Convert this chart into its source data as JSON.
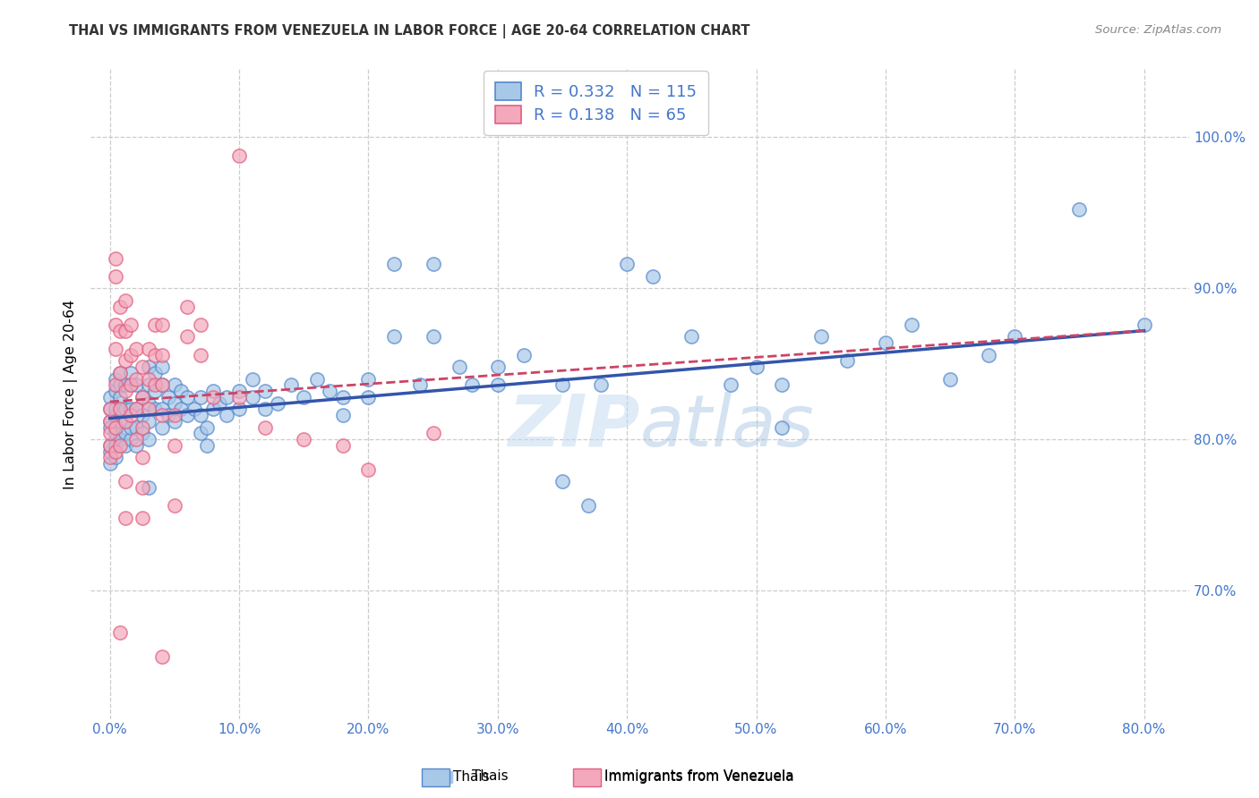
{
  "title": "THAI VS IMMIGRANTS FROM VENEZUELA IN LABOR FORCE | AGE 20-64 CORRELATION CHART",
  "source_text": "Source: ZipAtlas.com",
  "x_tick_vals": [
    0.0,
    0.1,
    0.2,
    0.3,
    0.4,
    0.5,
    0.6,
    0.7,
    0.8
  ],
  "x_tick_labels": [
    "0.0%",
    "10.0%",
    "20.0%",
    "30.0%",
    "40.0%",
    "50.0%",
    "60.0%",
    "70.0%",
    "80.0%"
  ],
  "y_tick_vals": [
    0.7,
    0.8,
    0.9,
    1.0
  ],
  "y_tick_labels": [
    "70.0%",
    "80.0%",
    "90.0%",
    "100.0%"
  ],
  "xlim": [
    -0.015,
    0.835
  ],
  "ylim": [
    0.615,
    1.045
  ],
  "ylabel": "In Labor Force | Age 20-64",
  "watermark": "ZIPatlas",
  "legend_labels": [
    "Thais",
    "Immigrants from Venezuela"
  ],
  "R_blue": 0.332,
  "N_blue": 115,
  "R_pink": 0.138,
  "N_pink": 65,
  "blue_color": "#A8C8E8",
  "pink_color": "#F4A8BC",
  "blue_edge_color": "#5588CC",
  "pink_edge_color": "#E06080",
  "blue_line_color": "#3355AA",
  "pink_line_color": "#CC4466",
  "grid_color": "#CCCCCC",
  "title_color": "#333333",
  "axis_tick_color": "#4477CC",
  "blue_scatter": [
    [
      0.0,
      0.784
    ],
    [
      0.0,
      0.792
    ],
    [
      0.0,
      0.828
    ],
    [
      0.0,
      0.812
    ],
    [
      0.0,
      0.796
    ],
    [
      0.0,
      0.808
    ],
    [
      0.0,
      0.82
    ],
    [
      0.004,
      0.8
    ],
    [
      0.004,
      0.816
    ],
    [
      0.004,
      0.788
    ],
    [
      0.004,
      0.796
    ],
    [
      0.004,
      0.804
    ],
    [
      0.004,
      0.82
    ],
    [
      0.004,
      0.832
    ],
    [
      0.004,
      0.84
    ],
    [
      0.008,
      0.8
    ],
    [
      0.008,
      0.812
    ],
    [
      0.008,
      0.82
    ],
    [
      0.008,
      0.828
    ],
    [
      0.008,
      0.836
    ],
    [
      0.008,
      0.844
    ],
    [
      0.012,
      0.796
    ],
    [
      0.012,
      0.804
    ],
    [
      0.012,
      0.812
    ],
    [
      0.012,
      0.82
    ],
    [
      0.012,
      0.836
    ],
    [
      0.016,
      0.8
    ],
    [
      0.016,
      0.808
    ],
    [
      0.016,
      0.82
    ],
    [
      0.016,
      0.836
    ],
    [
      0.016,
      0.844
    ],
    [
      0.02,
      0.796
    ],
    [
      0.02,
      0.808
    ],
    [
      0.02,
      0.82
    ],
    [
      0.02,
      0.836
    ],
    [
      0.025,
      0.804
    ],
    [
      0.025,
      0.816
    ],
    [
      0.025,
      0.828
    ],
    [
      0.03,
      0.768
    ],
    [
      0.03,
      0.8
    ],
    [
      0.03,
      0.812
    ],
    [
      0.03,
      0.824
    ],
    [
      0.03,
      0.836
    ],
    [
      0.03,
      0.848
    ],
    [
      0.035,
      0.82
    ],
    [
      0.035,
      0.832
    ],
    [
      0.035,
      0.844
    ],
    [
      0.04,
      0.808
    ],
    [
      0.04,
      0.82
    ],
    [
      0.04,
      0.836
    ],
    [
      0.04,
      0.848
    ],
    [
      0.045,
      0.816
    ],
    [
      0.045,
      0.828
    ],
    [
      0.05,
      0.812
    ],
    [
      0.05,
      0.824
    ],
    [
      0.05,
      0.836
    ],
    [
      0.055,
      0.82
    ],
    [
      0.055,
      0.832
    ],
    [
      0.06,
      0.816
    ],
    [
      0.06,
      0.828
    ],
    [
      0.065,
      0.82
    ],
    [
      0.07,
      0.804
    ],
    [
      0.07,
      0.816
    ],
    [
      0.07,
      0.828
    ],
    [
      0.075,
      0.796
    ],
    [
      0.075,
      0.808
    ],
    [
      0.08,
      0.82
    ],
    [
      0.08,
      0.832
    ],
    [
      0.085,
      0.824
    ],
    [
      0.09,
      0.816
    ],
    [
      0.09,
      0.828
    ],
    [
      0.1,
      0.82
    ],
    [
      0.1,
      0.832
    ],
    [
      0.11,
      0.828
    ],
    [
      0.11,
      0.84
    ],
    [
      0.12,
      0.82
    ],
    [
      0.12,
      0.832
    ],
    [
      0.13,
      0.824
    ],
    [
      0.14,
      0.836
    ],
    [
      0.15,
      0.828
    ],
    [
      0.16,
      0.84
    ],
    [
      0.17,
      0.832
    ],
    [
      0.18,
      0.816
    ],
    [
      0.18,
      0.828
    ],
    [
      0.2,
      0.828
    ],
    [
      0.2,
      0.84
    ],
    [
      0.22,
      0.916
    ],
    [
      0.22,
      0.868
    ],
    [
      0.24,
      0.836
    ],
    [
      0.25,
      0.916
    ],
    [
      0.25,
      0.868
    ],
    [
      0.27,
      0.848
    ],
    [
      0.28,
      0.836
    ],
    [
      0.3,
      0.836
    ],
    [
      0.3,
      0.848
    ],
    [
      0.32,
      0.856
    ],
    [
      0.35,
      0.772
    ],
    [
      0.35,
      0.836
    ],
    [
      0.37,
      0.756
    ],
    [
      0.38,
      0.836
    ],
    [
      0.4,
      0.916
    ],
    [
      0.42,
      0.908
    ],
    [
      0.45,
      0.868
    ],
    [
      0.48,
      0.836
    ],
    [
      0.5,
      0.848
    ],
    [
      0.52,
      0.836
    ],
    [
      0.52,
      0.808
    ],
    [
      0.55,
      0.868
    ],
    [
      0.57,
      0.852
    ],
    [
      0.6,
      0.864
    ],
    [
      0.62,
      0.876
    ],
    [
      0.65,
      0.84
    ],
    [
      0.68,
      0.856
    ],
    [
      0.7,
      0.868
    ],
    [
      0.75,
      0.952
    ],
    [
      0.8,
      0.876
    ]
  ],
  "pink_scatter": [
    [
      0.0,
      0.788
    ],
    [
      0.0,
      0.796
    ],
    [
      0.0,
      0.804
    ],
    [
      0.0,
      0.812
    ],
    [
      0.0,
      0.82
    ],
    [
      0.004,
      0.792
    ],
    [
      0.004,
      0.808
    ],
    [
      0.004,
      0.92
    ],
    [
      0.004,
      0.908
    ],
    [
      0.004,
      0.876
    ],
    [
      0.004,
      0.86
    ],
    [
      0.004,
      0.836
    ],
    [
      0.008,
      0.888
    ],
    [
      0.008,
      0.872
    ],
    [
      0.008,
      0.844
    ],
    [
      0.008,
      0.82
    ],
    [
      0.008,
      0.796
    ],
    [
      0.008,
      0.672
    ],
    [
      0.012,
      0.892
    ],
    [
      0.012,
      0.872
    ],
    [
      0.012,
      0.852
    ],
    [
      0.012,
      0.832
    ],
    [
      0.012,
      0.812
    ],
    [
      0.012,
      0.772
    ],
    [
      0.012,
      0.748
    ],
    [
      0.016,
      0.876
    ],
    [
      0.016,
      0.856
    ],
    [
      0.016,
      0.836
    ],
    [
      0.016,
      0.816
    ],
    [
      0.02,
      0.86
    ],
    [
      0.02,
      0.84
    ],
    [
      0.02,
      0.82
    ],
    [
      0.02,
      0.8
    ],
    [
      0.025,
      0.848
    ],
    [
      0.025,
      0.828
    ],
    [
      0.025,
      0.808
    ],
    [
      0.025,
      0.788
    ],
    [
      0.025,
      0.768
    ],
    [
      0.025,
      0.748
    ],
    [
      0.03,
      0.86
    ],
    [
      0.03,
      0.84
    ],
    [
      0.03,
      0.82
    ],
    [
      0.035,
      0.876
    ],
    [
      0.035,
      0.856
    ],
    [
      0.035,
      0.836
    ],
    [
      0.04,
      0.876
    ],
    [
      0.04,
      0.856
    ],
    [
      0.04,
      0.836
    ],
    [
      0.04,
      0.816
    ],
    [
      0.04,
      0.656
    ],
    [
      0.05,
      0.816
    ],
    [
      0.05,
      0.796
    ],
    [
      0.05,
      0.756
    ],
    [
      0.06,
      0.888
    ],
    [
      0.06,
      0.868
    ],
    [
      0.07,
      0.876
    ],
    [
      0.07,
      0.856
    ],
    [
      0.08,
      0.828
    ],
    [
      0.1,
      0.988
    ],
    [
      0.1,
      0.828
    ],
    [
      0.12,
      0.808
    ],
    [
      0.15,
      0.8
    ],
    [
      0.18,
      0.796
    ],
    [
      0.2,
      0.78
    ],
    [
      0.25,
      0.804
    ]
  ],
  "blue_trend": [
    0.0,
    0.814,
    0.8,
    0.872
  ],
  "pink_trend": [
    0.0,
    0.825,
    0.8,
    0.872
  ],
  "marker_size": 120
}
